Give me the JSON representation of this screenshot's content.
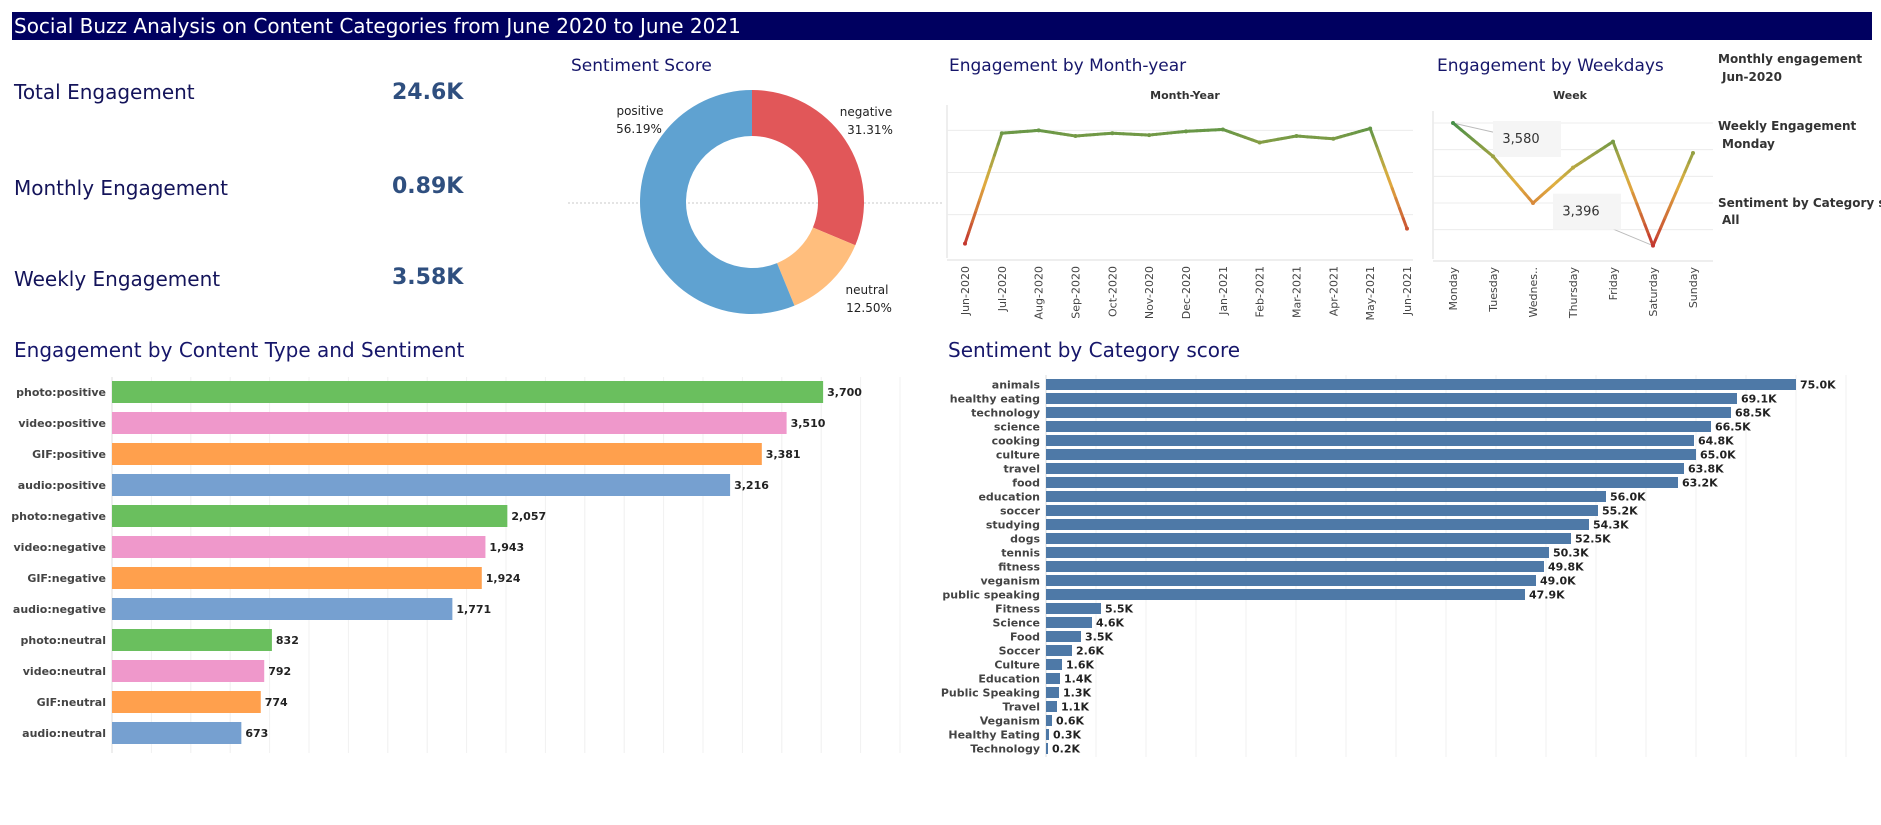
{
  "dashboard": {
    "title": "Social Buzz Analysis on Content Categories from June 2020 to June 2021"
  },
  "kpis": [
    {
      "label": "Total Engagement",
      "value": "24.6K"
    },
    {
      "label": "Monthly Engagement",
      "value": "0.89K"
    },
    {
      "label": "Weekly Engagement",
      "value": "3.58K"
    }
  ],
  "filters": [
    {
      "label": "Monthly engagement",
      "value": "Jun-2020"
    },
    {
      "label": "Weekly Engagement",
      "value": "Monday"
    },
    {
      "label": "Sentiment by Category sc..",
      "value": "All"
    }
  ],
  "colors": {
    "header_bg": "#000060",
    "positive": "#5fa2d1",
    "negative": "#e15759",
    "neutral": "#ffbe7d",
    "photo": "#6abf5e",
    "video": "#ef98cb",
    "GIF": "#ffa04d",
    "audio": "#76a0d0",
    "category_bar": "#4e79a7",
    "line_high": "#2e8b4a",
    "line_mid": "#e0b040",
    "line_low": "#c0282d"
  },
  "chart_data": [
    {
      "id": "sentiment",
      "type": "pie",
      "title": "Sentiment Score",
      "slices": [
        {
          "name": "negative",
          "value": 31.31,
          "label": "31.31%"
        },
        {
          "name": "neutral",
          "value": 12.5,
          "label": "12.50%"
        },
        {
          "name": "positive",
          "value": 56.19,
          "label": "56.19%"
        }
      ]
    },
    {
      "id": "monthly",
      "type": "line",
      "title": "Engagement by Month-year",
      "xlabel": "Month-Year",
      "x": [
        "Jun-2020",
        "Jul-2020",
        "Aug-2020",
        "Sep-2020",
        "Oct-2020",
        "Nov-2020",
        "Dec-2020",
        "Jan-2021",
        "Feb-2021",
        "Mar-2021",
        "Apr-2021",
        "May-2021",
        "Jun-2021"
      ],
      "values": [
        0.89,
        2.07,
        2.1,
        2.04,
        2.07,
        2.05,
        2.09,
        2.11,
        1.97,
        2.04,
        2.01,
        2.12,
        1.05
      ],
      "ylim": [
        0.8,
        2.35
      ],
      "gridlines": [
        1.2,
        1.65,
        2.1
      ]
    },
    {
      "id": "weekly",
      "type": "line",
      "title": "Engagement by Weekdays",
      "xlabel": "Week",
      "x": [
        "Monday",
        "Tuesday",
        "Wednes..",
        "Thursday",
        "Friday",
        "Saturday",
        "Sunday"
      ],
      "values": [
        3580,
        3530,
        3460,
        3513,
        3552,
        3396,
        3535
      ],
      "ylim": [
        3385,
        3595
      ],
      "gridlines": [
        3420,
        3460,
        3500,
        3540,
        3580
      ],
      "annotations": [
        {
          "index": 0,
          "text": "3,580"
        },
        {
          "index": 5,
          "text": "3,396"
        }
      ]
    },
    {
      "id": "content_type",
      "type": "bar",
      "title": "Engagement by Content Type and Sentiment",
      "categories": [
        "photo:positive",
        "video:positive",
        "GIF:positive",
        "audio:positive",
        "photo:negative",
        "video:negative",
        "GIF:negative",
        "audio:negative",
        "photo:neutral",
        "video:neutral",
        "GIF:neutral",
        "audio:neutral"
      ],
      "values": [
        3700,
        3510,
        3381,
        3216,
        2057,
        1943,
        1924,
        1771,
        832,
        792,
        774,
        673
      ],
      "labels": [
        "3,700",
        "3,510",
        "3,381",
        "3,216",
        "2,057",
        "1,943",
        "1,924",
        "1,771",
        "832",
        "792",
        "774",
        "673"
      ],
      "xlim": [
        0,
        4100
      ]
    },
    {
      "id": "category",
      "type": "bar",
      "title": "Sentiment by Category score",
      "categories": [
        "animals",
        "healthy eating",
        "technology",
        "science",
        "cooking",
        "culture",
        "travel",
        "food",
        "education",
        "soccer",
        "studying",
        "dogs",
        "tennis",
        "fitness",
        "veganism",
        "public speaking",
        "Fitness",
        "Science",
        "Food",
        "Soccer",
        "Culture",
        "Education",
        "Public Speaking",
        "Travel",
        "Veganism",
        "Healthy Eating",
        "Technology"
      ],
      "values": [
        75.0,
        69.1,
        68.5,
        66.5,
        64.8,
        65.0,
        63.8,
        63.2,
        56.0,
        55.2,
        54.3,
        52.5,
        50.3,
        49.8,
        49.0,
        47.9,
        5.5,
        4.6,
        3.5,
        2.6,
        1.6,
        1.4,
        1.3,
        1.1,
        0.6,
        0.3,
        0.2
      ],
      "labels": [
        "75.0K",
        "69.1K",
        "68.5K",
        "66.5K",
        "64.8K",
        "65.0K",
        "63.8K",
        "63.2K",
        "56.0K",
        "55.2K",
        "54.3K",
        "52.5K",
        "50.3K",
        "49.8K",
        "49.0K",
        "47.9K",
        "5.5K",
        "4.6K",
        "3.5K",
        "2.6K",
        "1.6K",
        "1.4K",
        "1.3K",
        "1.1K",
        "0.6K",
        "0.3K",
        "0.2K"
      ],
      "xlim": [
        0,
        80
      ]
    }
  ]
}
